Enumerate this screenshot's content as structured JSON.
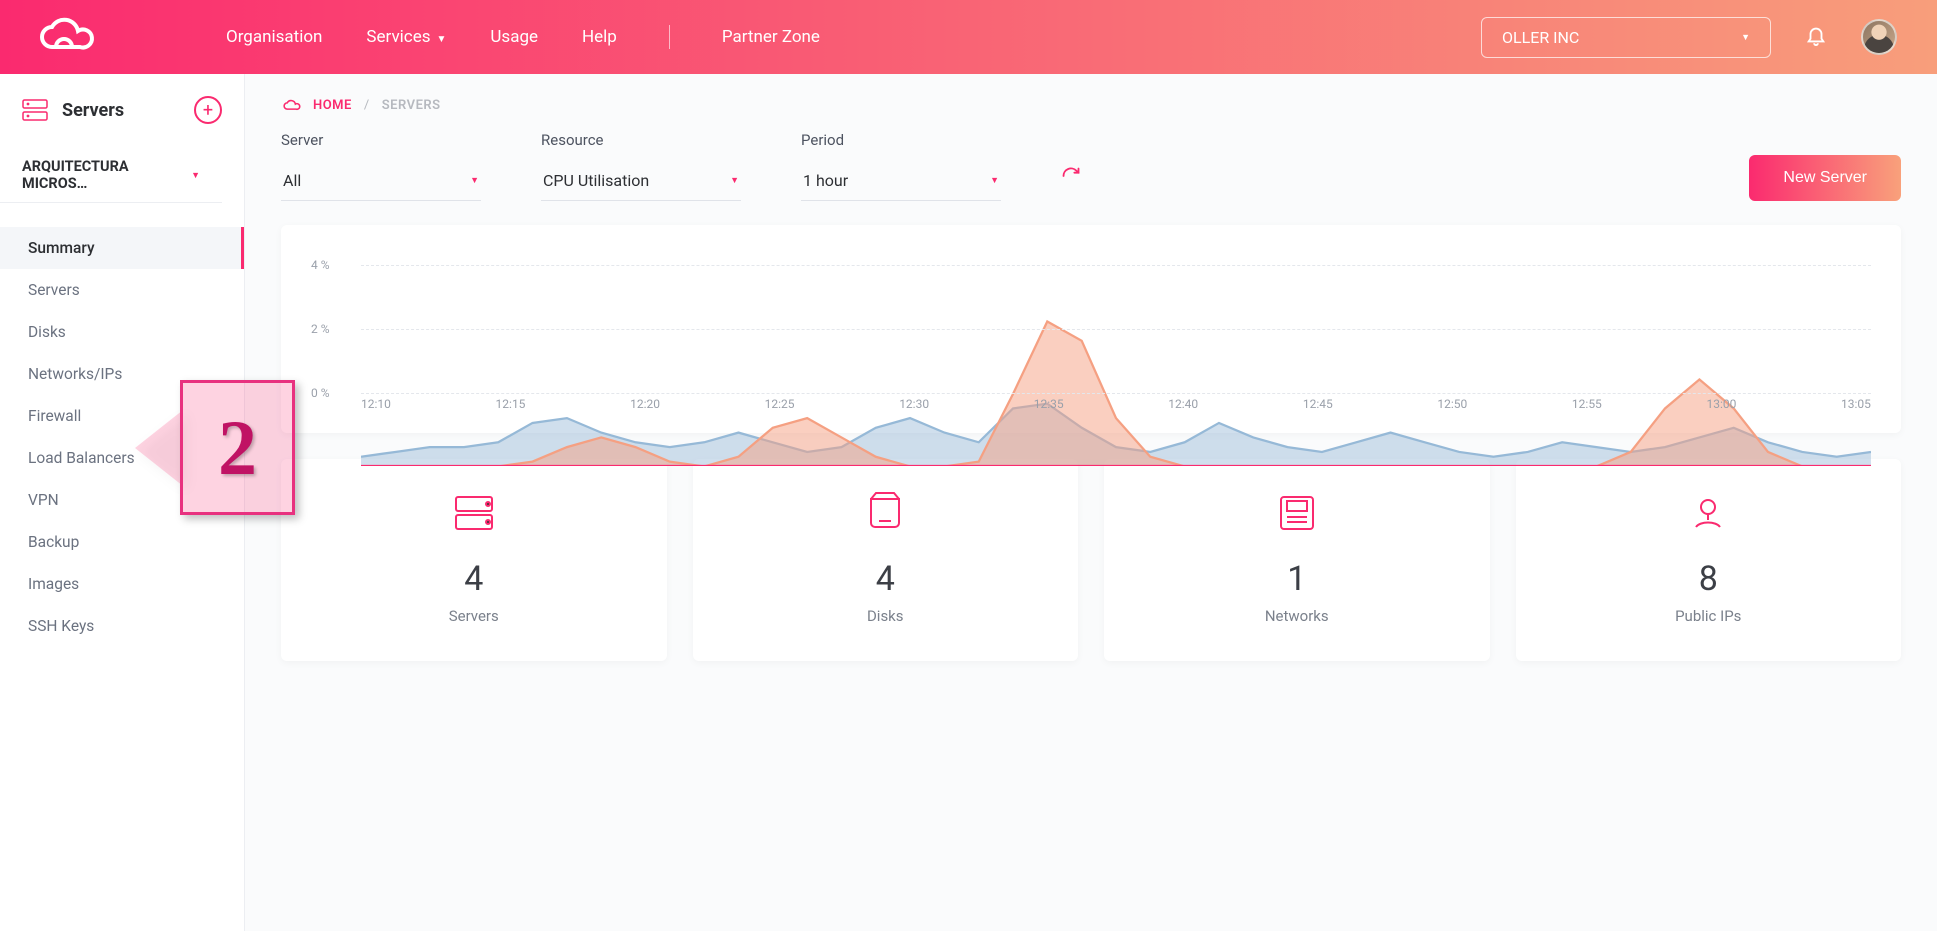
{
  "colors": {
    "header_gradient_from": "#fa2a6f",
    "header_gradient_to": "#f89e7b",
    "accent": "#fa2a6f",
    "button_gradient_from": "#fa2a6f",
    "button_gradient_to": "#f9a17b",
    "text_primary": "#2d2f33",
    "text_muted": "#6b7280",
    "card_bg": "#ffffff",
    "page_bg": "#fafbfc",
    "grid_color": "#e4e7ec",
    "series_blue_fill": "rgba(150,185,215,0.45)",
    "series_blue_stroke": "#96b9d7",
    "series_orange_fill": "rgba(245,160,130,0.5)",
    "series_orange_stroke": "#f5a082",
    "annot_border": "#e8317f",
    "annot_fill": "rgba(252,54,117,0.22)",
    "annot_text": "#c01364"
  },
  "header": {
    "nav": {
      "organisation": "Organisation",
      "services": "Services",
      "usage": "Usage",
      "help": "Help",
      "partner_zone": "Partner Zone"
    },
    "org_selector_value": "OLLER INC"
  },
  "sidebar": {
    "title": "Servers",
    "org_name": "ARQUITECTURA MICROS…",
    "items": [
      {
        "id": "summary",
        "label": "Summary",
        "active": true
      },
      {
        "id": "servers",
        "label": "Servers",
        "active": false
      },
      {
        "id": "disks",
        "label": "Disks",
        "active": false
      },
      {
        "id": "networks",
        "label": "Networks/IPs",
        "active": false
      },
      {
        "id": "firewall",
        "label": "Firewall",
        "active": false
      },
      {
        "id": "lb",
        "label": "Load Balancers",
        "active": false
      },
      {
        "id": "vpn",
        "label": "VPN",
        "active": false
      },
      {
        "id": "backup",
        "label": "Backup",
        "active": false
      },
      {
        "id": "images",
        "label": "Images",
        "active": false
      },
      {
        "id": "ssh",
        "label": "SSH Keys",
        "active": false
      }
    ]
  },
  "breadcrumb": {
    "home": "HOME",
    "current": "SERVERS"
  },
  "controls": {
    "server": {
      "label": "Server",
      "value": "All"
    },
    "resource": {
      "label": "Resource",
      "value": "CPU Utilisation"
    },
    "period": {
      "label": "Period",
      "value": "1 hour"
    }
  },
  "new_server_button": "New Server",
  "chart": {
    "type": "area",
    "ylim": [
      0,
      4.5
    ],
    "y_ticks": [
      {
        "value": 0,
        "label": "0 %"
      },
      {
        "value": 2,
        "label": "2 %"
      },
      {
        "value": 4,
        "label": "4 %"
      }
    ],
    "x_labels": [
      "12:10",
      "12:15",
      "12:20",
      "12:25",
      "12:30",
      "12:35",
      "12:40",
      "12:45",
      "12:50",
      "12:55",
      "13:00",
      "13:05"
    ],
    "series": [
      {
        "name": "blue",
        "points": [
          0.2,
          0.3,
          0.4,
          0.4,
          0.5,
          0.9,
          1.0,
          0.7,
          0.5,
          0.4,
          0.5,
          0.7,
          0.5,
          0.3,
          0.4,
          0.8,
          1.0,
          0.7,
          0.5,
          1.2,
          1.3,
          0.8,
          0.4,
          0.3,
          0.5,
          0.9,
          0.6,
          0.4,
          0.3,
          0.5,
          0.7,
          0.5,
          0.3,
          0.2,
          0.3,
          0.5,
          0.4,
          0.3,
          0.4,
          0.6,
          0.8,
          0.5,
          0.3,
          0.2,
          0.3
        ]
      },
      {
        "name": "orange",
        "points": [
          0.0,
          0.0,
          0.0,
          0.0,
          0.0,
          0.1,
          0.4,
          0.6,
          0.4,
          0.1,
          0.0,
          0.2,
          0.8,
          1.0,
          0.6,
          0.2,
          0.0,
          0.0,
          0.1,
          1.5,
          3.0,
          2.6,
          1.0,
          0.2,
          0.0,
          0.0,
          0.0,
          0.0,
          0.0,
          0.0,
          0.0,
          0.0,
          0.0,
          0.0,
          0.0,
          0.0,
          0.0,
          0.3,
          1.2,
          1.8,
          1.2,
          0.3,
          0.0,
          0.0,
          0.0
        ]
      }
    ]
  },
  "stats": [
    {
      "id": "servers",
      "value": "4",
      "label": "Servers"
    },
    {
      "id": "disks",
      "value": "4",
      "label": "Disks"
    },
    {
      "id": "networks",
      "value": "1",
      "label": "Networks"
    },
    {
      "id": "public_ips",
      "value": "8",
      "label": "Public IPs"
    }
  ],
  "annotation": {
    "number": "2"
  }
}
